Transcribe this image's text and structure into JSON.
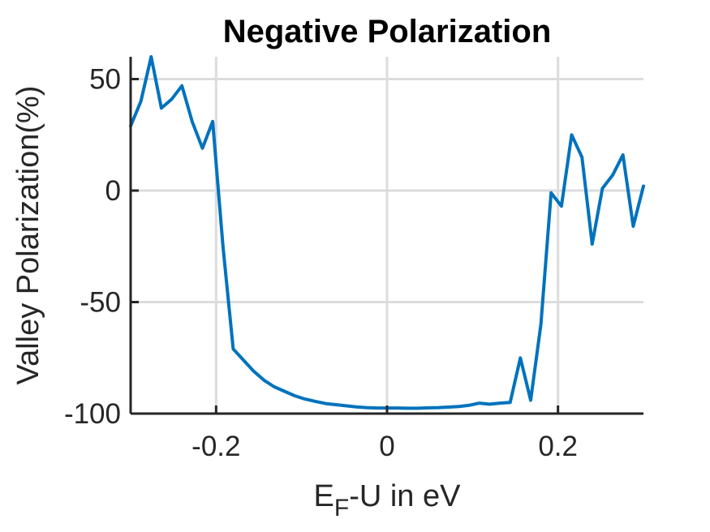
{
  "chart_data": {
    "type": "line",
    "title": "Negative Polarization",
    "xlabel": {
      "main": "E",
      "sub": "F",
      "rest": "-U in eV"
    },
    "ylabel": "Valley Polarization(%)",
    "xlim": [
      -0.3,
      0.3
    ],
    "ylim": [
      -100,
      60
    ],
    "xticks": [
      -0.2,
      0,
      0.2
    ],
    "xtick_labels": [
      "-0.2",
      "0",
      "0.2"
    ],
    "yticks": [
      -100,
      -50,
      0,
      50
    ],
    "ytick_labels": [
      "-100",
      "-50",
      "0",
      "50"
    ],
    "grid": true,
    "series": [
      {
        "color": "#0072BD",
        "x": [
          -0.3,
          -0.288,
          -0.276,
          -0.264,
          -0.252,
          -0.24,
          -0.228,
          -0.216,
          -0.204,
          -0.192,
          -0.18,
          -0.168,
          -0.156,
          -0.144,
          -0.132,
          -0.12,
          -0.108,
          -0.096,
          -0.084,
          -0.072,
          -0.06,
          -0.048,
          -0.036,
          -0.024,
          -0.012,
          0.0,
          0.012,
          0.024,
          0.036,
          0.048,
          0.06,
          0.072,
          0.084,
          0.096,
          0.108,
          0.12,
          0.132,
          0.144,
          0.156,
          0.168,
          0.18,
          0.192,
          0.204,
          0.216,
          0.228,
          0.24,
          0.252,
          0.264,
          0.276,
          0.288,
          0.3
        ],
        "y": [
          29,
          40,
          60,
          37,
          41,
          47,
          31,
          19,
          31,
          -25,
          -71,
          -76,
          -81,
          -85,
          -88,
          -90,
          -92,
          -93.5,
          -94.5,
          -95.5,
          -96,
          -96.5,
          -97,
          -97.3,
          -97.5,
          -97.5,
          -97.5,
          -97.6,
          -97.6,
          -97.4,
          -97.3,
          -97.1,
          -96.8,
          -96.3,
          -95.3,
          -95.8,
          -95.3,
          -95,
          -75,
          -94,
          -60,
          -1,
          -7,
          25,
          15,
          -24,
          1,
          7,
          16,
          -16,
          2
        ]
      }
    ]
  }
}
